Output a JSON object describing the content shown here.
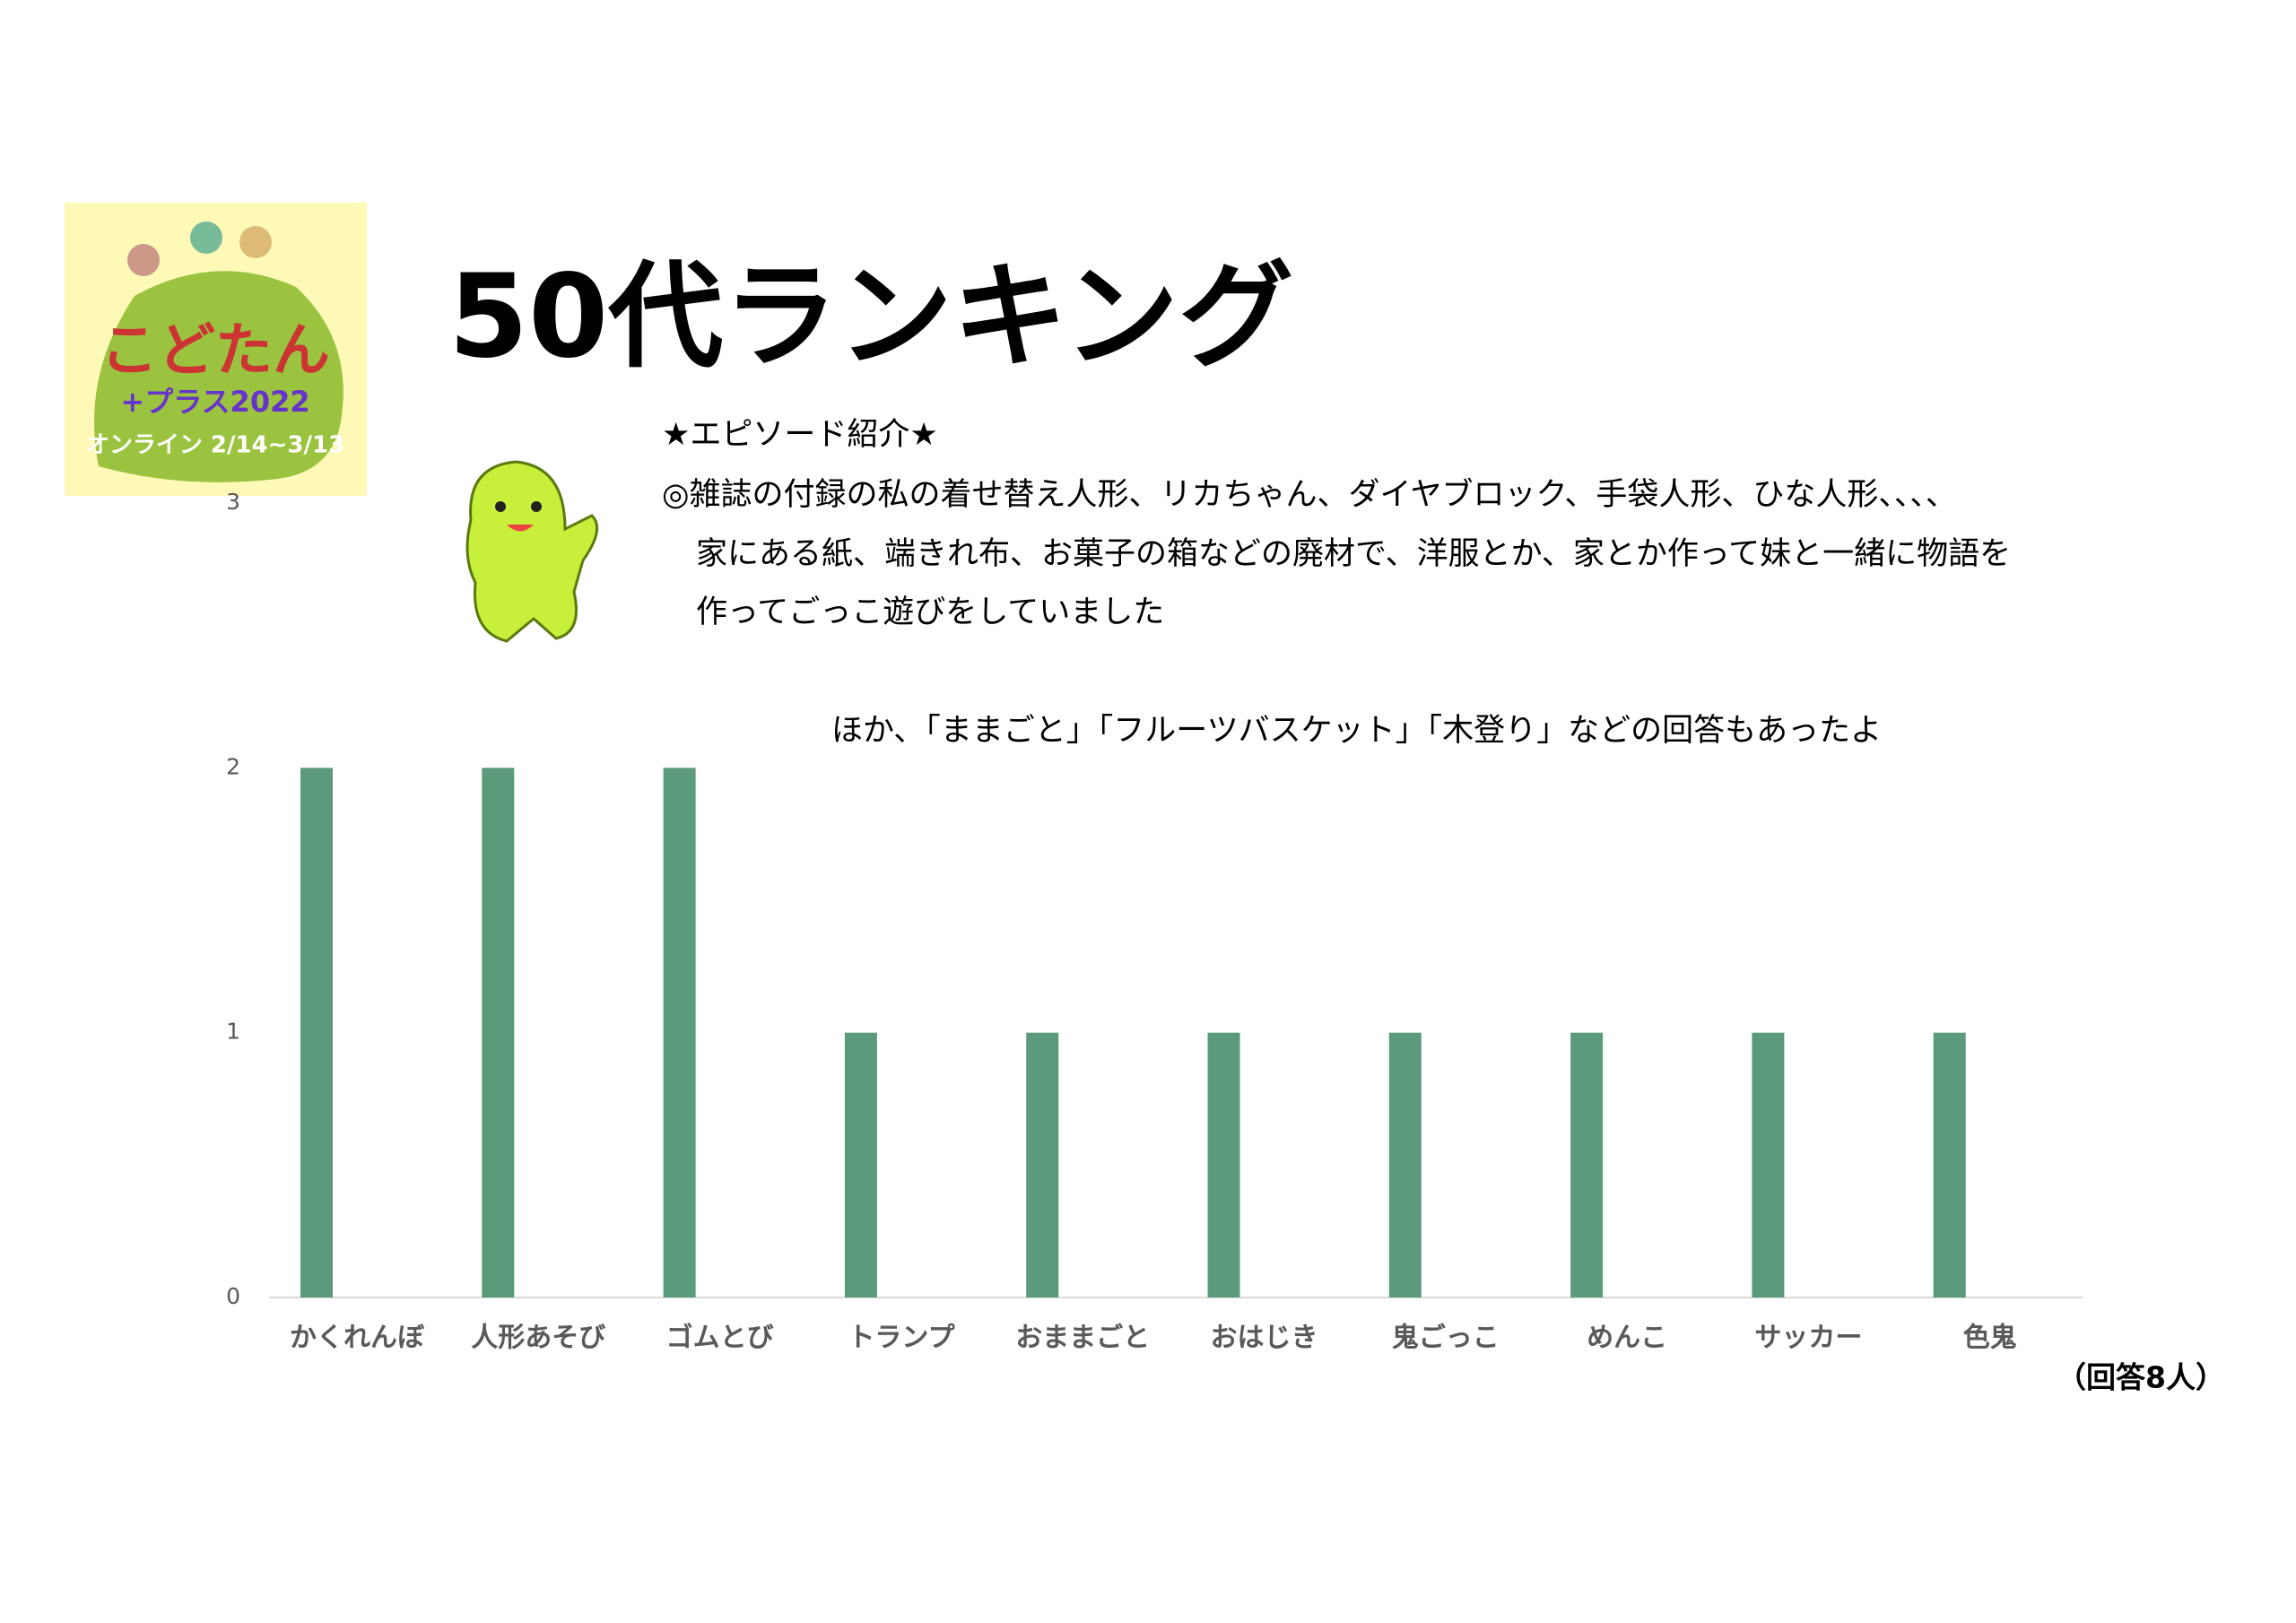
{
  "slide": {
    "title": "50代ランキング",
    "logo": {
      "name": "こどたん",
      "sub": "+プラス2022",
      "date": "オンライン 2/14~3/13"
    },
    "episode": {
      "heading": "★エピソード紹介★",
      "lines": [
        "◎雑誌の付録の私の着せ替え人形、リカちゃん、ダイヤブロック、手袋人形、ひな人形、、、、",
        "家にある紙、端きれ布、お菓子の箱などの廃材で、洋服とか、家とか作って妹と一緒に物語を",
        "作ってごっこ遊びをしていました"
      ]
    },
    "note": "ほか、「ままごと」「フルーツバスケット」「木登り」などの回答もあったよ",
    "respondents": "（回答8人）"
  },
  "chart_data": {
    "type": "bar",
    "categories": [
      "かくれんぼ",
      "人形あそび",
      "ゴムとび",
      "トランプ",
      "おままごと",
      "おはじき",
      "鬼ごっこ",
      "めんこ",
      "サッカー",
      "色鬼"
    ],
    "values": [
      2,
      2,
      2,
      1,
      1,
      1,
      1,
      1,
      1,
      1
    ],
    "color": "#5b9a7a",
    "ylim": [
      0,
      3
    ],
    "yticks": [
      0,
      1,
      2,
      3
    ],
    "grid": false
  }
}
